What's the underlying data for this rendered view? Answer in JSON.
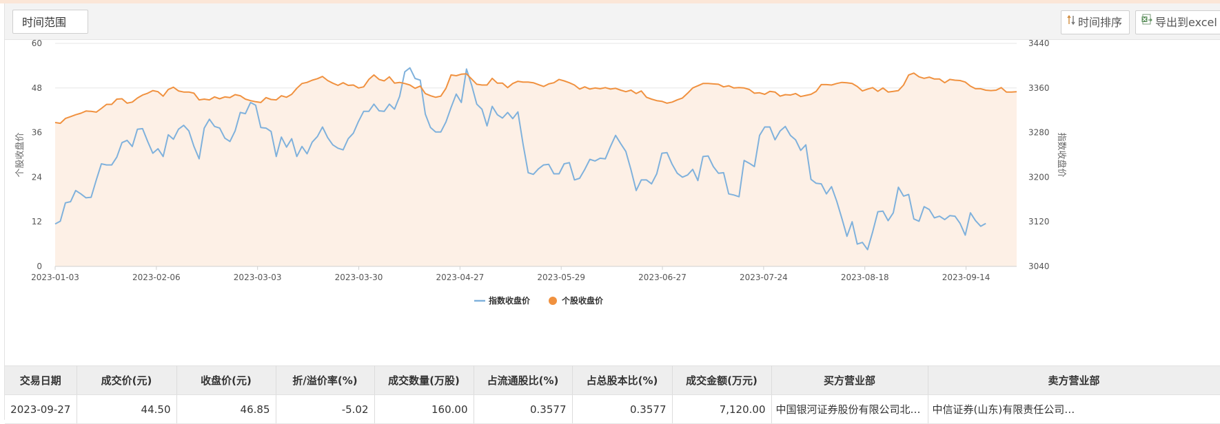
{
  "toolbar": {
    "range_label": "时间范围",
    "sort_label": "时间排序",
    "export_label": "导出到excel"
  },
  "chart_data": {
    "type": "line",
    "x_tick_labels": [
      "2023-01-03",
      "2023-02-06",
      "2023-03-03",
      "2023-03-30",
      "2023-04-27",
      "2023-05-29",
      "2023-06-27",
      "2023-07-24",
      "2023-08-18",
      "2023-09-14"
    ],
    "y_left": {
      "label": "个股收盘价",
      "ticks": [
        0,
        12,
        24,
        36,
        48,
        60
      ],
      "range": [
        0,
        60
      ]
    },
    "y_right": {
      "label": "指数收盘价",
      "ticks": [
        3040,
        3120,
        3200,
        3280,
        3360,
        3440
      ],
      "range": [
        3040,
        3440
      ]
    },
    "grid": true,
    "legend": {
      "position": "bottom-center",
      "items": [
        "指数收盘价",
        "个股收盘价"
      ]
    },
    "colors": {
      "index": "#7fb1dc",
      "stock": "#f0913f",
      "area": "#fdf0e6",
      "grid": "#e6e6e6",
      "axis": "#cfcfcf"
    },
    "series": [
      {
        "name": "指数收盘价",
        "axis": "right",
        "values": [
          3116,
          3121,
          3154,
          3156,
          3176,
          3170,
          3163,
          3164,
          3195,
          3224,
          3222,
          3222,
          3236,
          3262,
          3266,
          3255,
          3286,
          3287,
          3264,
          3243,
          3251,
          3237,
          3276,
          3268,
          3286,
          3293,
          3283,
          3255,
          3233,
          3288,
          3304,
          3291,
          3288,
          3270,
          3264,
          3283,
          3316,
          3314,
          3334,
          3329,
          3289,
          3288,
          3282,
          3237,
          3272,
          3254,
          3269,
          3237,
          3255,
          3242,
          3263,
          3273,
          3290,
          3271,
          3258,
          3252,
          3249,
          3269,
          3279,
          3300,
          3318,
          3318,
          3331,
          3319,
          3318,
          3331,
          3322,
          3345,
          3389,
          3396,
          3377,
          3374,
          3313,
          3289,
          3281,
          3281,
          3299,
          3325,
          3349,
          3334,
          3394,
          3365,
          3331,
          3322,
          3292,
          3327,
          3312,
          3306,
          3316,
          3305,
          3317,
          3259,
          3208,
          3205,
          3215,
          3222,
          3223,
          3206,
          3206,
          3224,
          3226,
          3195,
          3198,
          3214,
          3232,
          3229,
          3234,
          3233,
          3255,
          3275,
          3260,
          3246,
          3213,
          3176,
          3195,
          3195,
          3188,
          3206,
          3243,
          3244,
          3223,
          3207,
          3200,
          3204,
          3214,
          3194,
          3237,
          3238,
          3219,
          3207,
          3208,
          3170,
          3168,
          3165,
          3230,
          3225,
          3219,
          3275,
          3290,
          3290,
          3267,
          3283,
          3291,
          3275,
          3267,
          3248,
          3258,
          3196,
          3189,
          3188,
          3170,
          3183,
          3157,
          3126,
          3094,
          3120,
          3080,
          3083,
          3070,
          3102,
          3138,
          3139,
          3122,
          3136,
          3182,
          3166,
          3169,
          3125,
          3121,
          3147,
          3142,
          3127,
          3130,
          3124,
          3131,
          3130,
          3117,
          3096,
          3136,
          3122,
          3112,
          3117
        ]
      },
      {
        "name": "个股收盘价",
        "axis": "left",
        "values": [
          38.7,
          38.5,
          39.8,
          40.3,
          40.8,
          41.2,
          41.8,
          41.7,
          41.5,
          42.5,
          43.6,
          43.6,
          45.0,
          45.1,
          43.9,
          44.2,
          45.3,
          46.1,
          46.6,
          47.3,
          47.0,
          45.8,
          47.6,
          48.2,
          47.2,
          46.9,
          46.9,
          46.6,
          44.8,
          45.0,
          44.8,
          45.6,
          45.1,
          45.6,
          45.4,
          46.2,
          45.9,
          45.0,
          44.6,
          44.3,
          44.1,
          45.4,
          44.9,
          44.8,
          45.9,
          45.5,
          46.3,
          47.9,
          49.2,
          49.5,
          50.1,
          50.5,
          51.1,
          50.0,
          49.3,
          48.7,
          49.4,
          48.7,
          48.8,
          48.0,
          48.3,
          50.3,
          51.5,
          50.3,
          49.9,
          51.0,
          49.3,
          49.5,
          49.2,
          48.8,
          47.9,
          48.5,
          46.5,
          45.9,
          45.5,
          45.8,
          47.9,
          51.5,
          51.3,
          51.7,
          51.8,
          50.4,
          49.0,
          48.8,
          48.8,
          50.6,
          49.3,
          49.3,
          48.1,
          49.2,
          49.8,
          49.6,
          49.6,
          49.4,
          48.9,
          48.4,
          49.1,
          49.4,
          50.3,
          49.9,
          49.4,
          48.8,
          47.7,
          48.3,
          47.7,
          48.0,
          47.8,
          48.1,
          47.7,
          47.9,
          47.4,
          47.0,
          47.4,
          46.5,
          47.2,
          45.5,
          45.0,
          44.6,
          44.4,
          43.9,
          44.2,
          44.8,
          45.3,
          46.6,
          48.0,
          48.6,
          49.2,
          49.2,
          49.1,
          49.0,
          48.3,
          48.6,
          48.0,
          48.1,
          48.0,
          47.6,
          46.6,
          46.7,
          46.3,
          47.1,
          46.9,
          45.8,
          46.2,
          46.1,
          46.5,
          45.7,
          46.0,
          46.3,
          47.1,
          48.9,
          48.9,
          48.8,
          49.2,
          49.5,
          49.4,
          49.2,
          48.4,
          47.2,
          47.7,
          48.1,
          47.1,
          48.0,
          46.9,
          47.1,
          47.3,
          48.8,
          51.5,
          52.0,
          51.0,
          50.6,
          50.9,
          50.4,
          50.4,
          49.4,
          50.3,
          50.1,
          50.0,
          49.6,
          48.5,
          47.8,
          47.8,
          47.4,
          47.3,
          47.4,
          48.1,
          46.9,
          46.9,
          47.0
        ]
      }
    ]
  },
  "table": {
    "headers": [
      "交易日期",
      "成交价(元)",
      "收盘价(元)",
      "折/溢价率(%)",
      "成交数量(万股)",
      "占流通股比(%)",
      "占总股本比(%)",
      "成交金额(万元)",
      "买方营业部",
      "卖方营业部"
    ],
    "rows": [
      [
        "2023-09-27",
        "44.50",
        "46.85",
        "-5.02",
        "160.00",
        "0.3577",
        "0.3577",
        "7,120.00",
        "中国银河证券股份有限公司北京…",
        "中信证券(山东)有限责任公司…"
      ]
    ]
  }
}
